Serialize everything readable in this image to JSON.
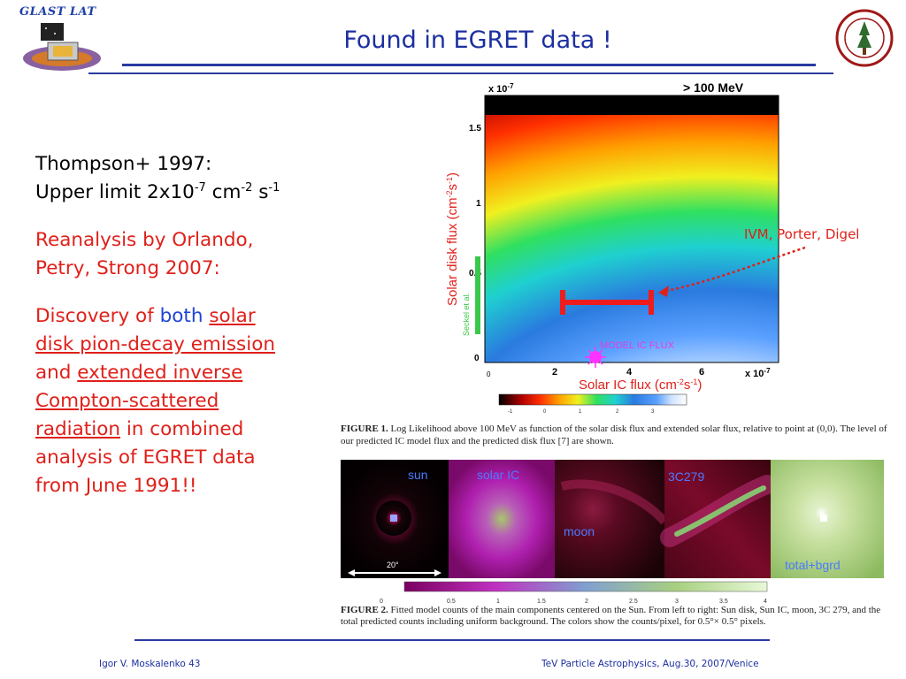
{
  "header": {
    "logo_text": "GLAST LAT",
    "title": "Found in EGRET data !"
  },
  "left_text": {
    "thompson_line1": "Thompson+ 1997:",
    "upper_limit_prefix": "Upper limit 2x10",
    "upper_limit_exp1": "-7",
    "upper_limit_unit1": " cm",
    "upper_limit_exp2": "-2",
    "upper_limit_unit2": " s",
    "upper_limit_exp3": "-1",
    "reanalysis_line1": "Reanalysis by Orlando,",
    "reanalysis_line2": "Petry, Strong 2007:",
    "discovery_prefix": "Discovery of ",
    "discovery_both": "both",
    "discovery_solar": "solar",
    "discovery_pion": "disk pion-decay emission",
    "discovery_and": "and ",
    "discovery_extended": "extended inverse",
    "discovery_compton": "Compton-scattered",
    "discovery_radiation": "radiation",
    "discovery_in_combined": " in combined",
    "discovery_line_analysis": "analysis of EGRET data",
    "discovery_line_from": "from June 1991!!"
  },
  "figure1": {
    "energy_label": "> 100 MeV",
    "y_multiplier": "x 10",
    "y_multiplier_exp": "-7",
    "x_multiplier": "x 10",
    "x_multiplier_exp": "-7",
    "ylabel": "Solar disk flux (cm",
    "ylabel_exp1": "-2",
    "ylabel_mid": "s",
    "ylabel_exp2": "-1",
    "ylabel_end": ")",
    "xlabel": "Solar IC flux (cm",
    "xlabel_exp1": "-2",
    "xlabel_mid": "s",
    "xlabel_exp2": "-1",
    "xlabel_end": ")",
    "seckel_label": "Seckel et al.",
    "model_ic_label": "MODEL IC FLUX",
    "ivm_label": "IVM, Porter, Digel",
    "y_ticks": [
      "1.5",
      "1",
      "0.5",
      "0"
    ],
    "x_ticks": [
      "2",
      "4",
      "6"
    ],
    "x_tick_zero": "0",
    "colorbar_ticks": [
      "-1",
      "0",
      "1",
      "2",
      "3"
    ],
    "caption_head": "FIGURE 1.",
    "caption_body": "  Log Likelihood above 100 MeV as function of  the solar disk flux and extended solar flux, relative to point at (0,0). The level of our predicted IC model flux and the predicted disk flux [7] are shown."
  },
  "figure2": {
    "panel_labels": {
      "sun": "sun",
      "solar_ic": "solar IC",
      "moon": "moon",
      "c3c279": "3C279",
      "total": "total+bgrd"
    },
    "scale_label": "20°",
    "colorbar_ticks": [
      "0",
      "0.5",
      "1",
      "1.5",
      "2",
      "2.5",
      "3",
      "3.5",
      "4"
    ],
    "caption_head": "FIGURE 2.",
    "caption_body": "  Fitted model counts of the main components centered on the Sun. From left to right: Sun disk, Sun IC, moon, 3C 279, and the total predicted counts including uniform background.  The colors show the counts/pixel, for 0.5°× 0.5° pixels."
  },
  "footer": {
    "left": "Igor V. Moskalenko  43",
    "right": "TeV Particle Astrophysics, Aug.30, 2007/Venice"
  },
  "colors": {
    "title_blue": "#1c2fa0",
    "accent_red": "#e0201a",
    "accent_blue": "#1f44d6"
  }
}
